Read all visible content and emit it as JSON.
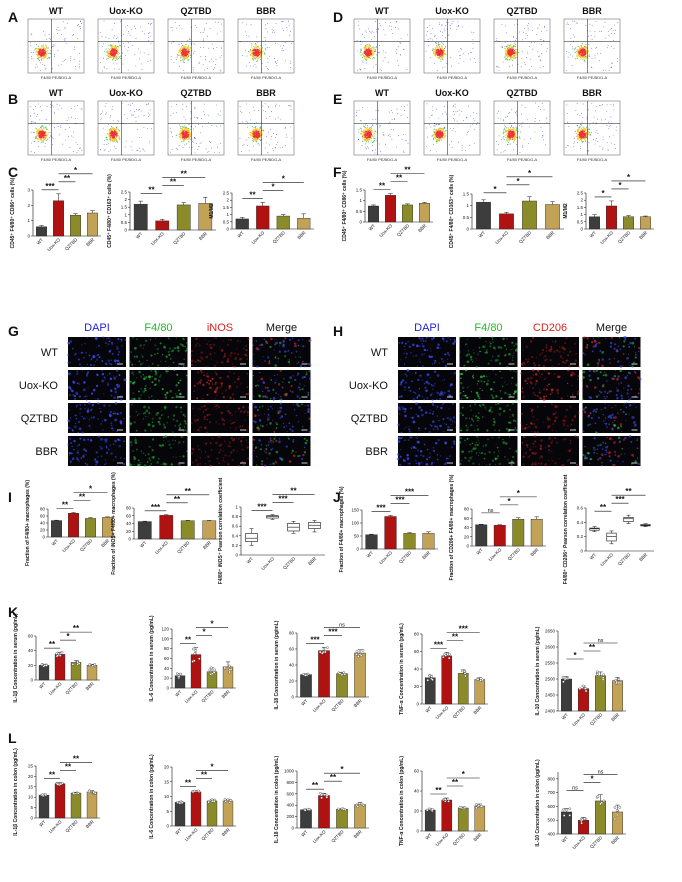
{
  "panels": {
    "A": {
      "letter": "A",
      "groups": [
        "WT",
        "Uox-KO",
        "QZTBD",
        "BBR"
      ]
    },
    "B": {
      "letter": "B",
      "groups": [
        "WT",
        "Uox-KO",
        "QZTBD",
        "BBR"
      ]
    },
    "D": {
      "letter": "D",
      "groups": [
        "WT",
        "Uox-KO",
        "QZTBD",
        "BBR"
      ]
    },
    "E": {
      "letter": "E",
      "groups": [
        "WT",
        "Uox-KO",
        "QZTBD",
        "BBR"
      ]
    },
    "C": {
      "letter": "C"
    },
    "F": {
      "letter": "F"
    },
    "G": {
      "letter": "G",
      "columns": [
        "DAPI",
        "F4/80",
        "iNOS",
        "Merge"
      ],
      "rows": [
        "WT",
        "Uox-KO",
        "QZTBD",
        "BBR"
      ]
    },
    "H": {
      "letter": "H",
      "columns": [
        "DAPI",
        "F4/80",
        "CD206",
        "Merge"
      ],
      "rows": [
        "WT",
        "Uox-KO",
        "QZTBD",
        "BBR"
      ]
    },
    "I": {
      "letter": "I"
    },
    "J": {
      "letter": "J"
    },
    "K": {
      "letter": "K"
    },
    "L": {
      "letter": "L"
    }
  },
  "flow_axis_labels": {
    "x": "F4/80 PE/BDG-A",
    "y": "CD86 APC-A"
  },
  "colors": {
    "WT": "#3d3d3d",
    "Uox-KO": "#b01212",
    "QZTBD": "#8b8b2a",
    "BBR": "#c2a257",
    "dapi": "#2323dd",
    "f480": "#22bb22",
    "red": "#dd2222"
  },
  "chart_data": [
    {
      "id": "C1",
      "type": "bar",
      "categories": [
        "WT",
        "Uox-KO",
        "QZTBD",
        "BBR"
      ],
      "values": [
        0.6,
        2.3,
        1.35,
        1.5
      ],
      "errors": [
        0.08,
        0.45,
        0.1,
        0.15
      ],
      "ylim": [
        0,
        3
      ],
      "yticks": [
        0,
        1,
        2,
        3
      ],
      "ylabel": "CD45⁺ F4/80⁺ CD86⁺ cells (%)",
      "sig": [
        {
          "from": 0,
          "to": 1,
          "label": "***"
        },
        {
          "from": 1,
          "to": 2,
          "label": "**"
        },
        {
          "from": 1,
          "to": 3,
          "label": "*"
        }
      ]
    },
    {
      "id": "C2",
      "type": "bar",
      "categories": [
        "WT",
        "Uox-KO",
        "QZTBD",
        "BBR"
      ],
      "values": [
        1.7,
        0.6,
        1.65,
        1.75
      ],
      "errors": [
        0.2,
        0.1,
        0.15,
        0.4
      ],
      "ylim": [
        0,
        2.5
      ],
      "yticks": [
        0,
        0.5,
        1.0,
        1.5,
        2.0,
        2.5
      ],
      "ylabel": "CD45⁺ F4/80⁺ CD163⁺ cells (%)",
      "sig": [
        {
          "from": 0,
          "to": 1,
          "label": "**"
        },
        {
          "from": 1,
          "to": 2,
          "label": "**"
        },
        {
          "from": 1,
          "to": 3,
          "label": "**"
        }
      ]
    },
    {
      "id": "C3",
      "type": "bar",
      "categories": [
        "WT",
        "Uox-KO",
        "QZTBD",
        "BBR"
      ],
      "values": [
        0.7,
        1.6,
        0.9,
        0.75
      ],
      "errors": [
        0.1,
        0.25,
        0.1,
        0.3
      ],
      "ylim": [
        0,
        2.5
      ],
      "yticks": [
        0,
        0.5,
        1.0,
        1.5,
        2.0,
        2.5
      ],
      "ylabel": "M1/M2",
      "sig": [
        {
          "from": 0,
          "to": 1,
          "label": "**"
        },
        {
          "from": 1,
          "to": 2,
          "label": "*"
        },
        {
          "from": 1,
          "to": 3,
          "label": "*"
        }
      ]
    },
    {
      "id": "F1",
      "type": "bar",
      "categories": [
        "WT",
        "Uox-KO",
        "QZTBD",
        "BBR"
      ],
      "values": [
        0.75,
        1.25,
        0.8,
        0.88
      ],
      "errors": [
        0.05,
        0.08,
        0.05,
        0.04
      ],
      "ylim": [
        0,
        1.5
      ],
      "yticks": [
        0,
        0.5,
        1.0,
        1.5
      ],
      "ylabel": "CD45⁺ F4/80⁺ CD86⁺ cells (%)",
      "sig": [
        {
          "from": 0,
          "to": 1,
          "label": "**"
        },
        {
          "from": 1,
          "to": 2,
          "label": "**"
        },
        {
          "from": 1,
          "to": 3,
          "label": "**"
        }
      ]
    },
    {
      "id": "F2",
      "type": "bar",
      "categories": [
        "WT",
        "Uox-KO",
        "QZTBD",
        "BBR"
      ],
      "values": [
        1.15,
        0.65,
        1.2,
        1.05
      ],
      "errors": [
        0.1,
        0.06,
        0.18,
        0.12
      ],
      "ylim": [
        0,
        1.5
      ],
      "yticks": [
        0,
        0.5,
        1.0,
        1.5
      ],
      "ylabel": "CD45⁺ F4/80⁺ CD163⁺ cells (%)",
      "sig": [
        {
          "from": 0,
          "to": 1,
          "label": "*"
        },
        {
          "from": 1,
          "to": 2,
          "label": "*"
        },
        {
          "from": 1,
          "to": 3,
          "label": "*"
        }
      ]
    },
    {
      "id": "F3",
      "type": "bar",
      "categories": [
        "WT",
        "Uox-KO",
        "QZTBD",
        "BBR"
      ],
      "values": [
        0.85,
        1.6,
        0.85,
        0.85
      ],
      "errors": [
        0.15,
        0.35,
        0.08,
        0.05
      ],
      "ylim": [
        0,
        2.5
      ],
      "yticks": [
        0,
        0.5,
        1.0,
        1.5,
        2.0,
        2.5
      ],
      "ylabel": "M1/M2",
      "sig": [
        {
          "from": 0,
          "to": 1,
          "label": "*"
        },
        {
          "from": 1,
          "to": 2,
          "label": "*"
        },
        {
          "from": 1,
          "to": 3,
          "label": "*"
        }
      ]
    },
    {
      "id": "I1",
      "type": "bar",
      "categories": [
        "WT",
        "Uox-KO",
        "QZTBD",
        "BBR"
      ],
      "values": [
        47,
        68,
        53,
        56
      ],
      "errors": [
        1,
        2,
        2,
        1.5
      ],
      "ylim": [
        0,
        80
      ],
      "yticks": [
        0,
        20,
        40,
        60,
        80
      ],
      "ylabel": "Fraction of F4/80+ macrophages (%)",
      "sig": [
        {
          "from": 0,
          "to": 1,
          "label": "**"
        },
        {
          "from": 1,
          "to": 2,
          "label": "**"
        },
        {
          "from": 1,
          "to": 3,
          "label": "*"
        }
      ]
    },
    {
      "id": "I2",
      "type": "bar",
      "categories": [
        "WT",
        "Uox-KO",
        "QZTBD",
        "BBR"
      ],
      "values": [
        45,
        61,
        47,
        47
      ],
      "errors": [
        1,
        1.5,
        1,
        0.8
      ],
      "ylim": [
        0,
        80
      ],
      "yticks": [
        0,
        20,
        40,
        60,
        80
      ],
      "ylabel": "Fraction of iNOS+ F4/80+ macrophages (%)",
      "sig": [
        {
          "from": 0,
          "to": 1,
          "label": "***"
        },
        {
          "from": 1,
          "to": 2,
          "label": "**"
        },
        {
          "from": 1,
          "to": 3,
          "label": "**"
        }
      ]
    },
    {
      "id": "I3",
      "type": "box",
      "categories": [
        "WT",
        "Uox-KO",
        "QZTBD",
        "BBR"
      ],
      "boxes": [
        [
          0.2,
          0.28,
          0.35,
          0.45,
          0.55
        ],
        [
          0.74,
          0.77,
          0.8,
          0.82,
          0.84
        ],
        [
          0.45,
          0.5,
          0.58,
          0.66,
          0.7
        ],
        [
          0.48,
          0.55,
          0.62,
          0.68,
          0.72
        ]
      ],
      "ylim": [
        0,
        1.0
      ],
      "yticks": [
        0,
        0.2,
        0.4,
        0.6,
        0.8,
        1.0
      ],
      "ylabel": "F4/80⁺ iNOS⁺ Pearson correlation coefficient",
      "sig": [
        {
          "from": 0,
          "to": 1,
          "label": "***"
        },
        {
          "from": 1,
          "to": 2,
          "label": "***"
        },
        {
          "from": 1,
          "to": 3,
          "label": "**"
        }
      ]
    },
    {
      "id": "J1",
      "type": "bar",
      "categories": [
        "WT",
        "Uox-KO",
        "QZTBD",
        "BBR"
      ],
      "values": [
        55,
        125,
        60,
        60
      ],
      "errors": [
        2,
        4,
        3,
        6
      ],
      "ylim": [
        0,
        150
      ],
      "yticks": [
        0,
        50,
        100,
        150
      ],
      "ylabel": "Fraction of F4/80+ macrophages (%)",
      "sig": [
        {
          "from": 0,
          "to": 1,
          "label": "***"
        },
        {
          "from": 1,
          "to": 2,
          "label": "***"
        },
        {
          "from": 1,
          "to": 3,
          "label": "***"
        }
      ]
    },
    {
      "id": "J2",
      "type": "bar",
      "categories": [
        "WT",
        "Uox-KO",
        "QZTBD",
        "BBR"
      ],
      "values": [
        46,
        45,
        58,
        58
      ],
      "errors": [
        1,
        1,
        3,
        5
      ],
      "ylim": [
        0,
        80
      ],
      "yticks": [
        0,
        20,
        40,
        60,
        80
      ],
      "ylabel": "Fraction of CD206+ F4/80+ macrophages (%)",
      "sig": [
        {
          "from": 0,
          "to": 1,
          "label": "ns"
        },
        {
          "from": 1,
          "to": 2,
          "label": "*"
        },
        {
          "from": 1,
          "to": 3,
          "label": "*"
        }
      ]
    },
    {
      "id": "J3",
      "type": "box",
      "categories": [
        "WT",
        "Uox-KO",
        "QZTBD",
        "BBR"
      ],
      "boxes": [
        [
          0.27,
          0.29,
          0.31,
          0.32,
          0.34
        ],
        [
          0.1,
          0.14,
          0.2,
          0.25,
          0.28
        ],
        [
          0.38,
          0.41,
          0.45,
          0.47,
          0.5
        ],
        [
          0.34,
          0.35,
          0.36,
          0.37,
          0.38
        ]
      ],
      "ylim": [
        0,
        0.6
      ],
      "yticks": [
        0,
        0.2,
        0.4,
        0.6
      ],
      "ylabel": "F4/80⁺ CD206⁺ Pearson correlation coefficient",
      "sig": [
        {
          "from": 0,
          "to": 1,
          "label": "**"
        },
        {
          "from": 1,
          "to": 2,
          "label": "***"
        },
        {
          "from": 1,
          "to": 3,
          "label": "**"
        }
      ]
    },
    {
      "id": "K1",
      "type": "bar",
      "dots": true,
      "categories": [
        "WT",
        "Uox-KO",
        "QZTBD",
        "BBR"
      ],
      "values": [
        20,
        35,
        24,
        20
      ],
      "errors": [
        1.5,
        3,
        2.5,
        1.5
      ],
      "ylim": [
        0,
        60
      ],
      "yticks": [
        0,
        20,
        40,
        60
      ],
      "ylabel": "IL-1β Concentration in serum (pg/mL)",
      "sig": [
        {
          "from": 0,
          "to": 1,
          "label": "**"
        },
        {
          "from": 1,
          "to": 2,
          "label": "*"
        },
        {
          "from": 1,
          "to": 3,
          "label": "**"
        }
      ]
    },
    {
      "id": "K2",
      "type": "bar",
      "dots": true,
      "categories": [
        "WT",
        "Uox-KO",
        "QZTBD",
        "BBR"
      ],
      "values": [
        25,
        68,
        33,
        43
      ],
      "errors": [
        4,
        14,
        8,
        10
      ],
      "ylim": [
        0,
        120
      ],
      "yticks": [
        0,
        20,
        40,
        60,
        80,
        100,
        120
      ],
      "ylabel": "IL-6 Concentration in serum (pg/mL)",
      "sig": [
        {
          "from": 0,
          "to": 1,
          "label": "**"
        },
        {
          "from": 1,
          "to": 2,
          "label": "*"
        },
        {
          "from": 1,
          "to": 3,
          "label": "*"
        }
      ]
    },
    {
      "id": "K3",
      "type": "bar",
      "dots": true,
      "categories": [
        "WT",
        "Uox-KO",
        "QZTBD",
        "BBR"
      ],
      "values": [
        28,
        58,
        29,
        55
      ],
      "errors": [
        1,
        4,
        2,
        4
      ],
      "ylim": [
        0,
        80
      ],
      "yticks": [
        0,
        20,
        40,
        60,
        80
      ],
      "ylabel": "IL-18 Concentration in serum (pg/mL)",
      "sig": [
        {
          "from": 0,
          "to": 1,
          "label": "***"
        },
        {
          "from": 1,
          "to": 2,
          "label": "***"
        },
        {
          "from": 1,
          "to": 3,
          "label": "ns"
        }
      ]
    },
    {
      "id": "K4",
      "type": "bar",
      "dots": true,
      "categories": [
        "WT",
        "Uox-KO",
        "QZTBD",
        "BBR"
      ],
      "values": [
        30,
        55,
        35,
        28
      ],
      "errors": [
        3,
        4,
        4,
        2
      ],
      "ylim": [
        0,
        80
      ],
      "yticks": [
        0,
        20,
        40,
        60,
        80
      ],
      "ylabel": "TNF-α Concentration in serum (pg/mL)",
      "sig": [
        {
          "from": 0,
          "to": 1,
          "label": "***"
        },
        {
          "from": 1,
          "to": 2,
          "label": "**"
        },
        {
          "from": 1,
          "to": 3,
          "label": "***"
        }
      ]
    },
    {
      "id": "K5",
      "type": "bar",
      "dots": true,
      "categories": [
        "WT",
        "Uox-KO",
        "QZTBD",
        "BBR"
      ],
      "values": [
        2500,
        2470,
        2510,
        2495
      ],
      "errors": [
        8,
        8,
        12,
        10
      ],
      "ylim": [
        2400,
        2650
      ],
      "yticks": [
        2400,
        2450,
        2500,
        2550,
        2600,
        2650
      ],
      "ylabel": "IL-10 Concentration in serum (pg/mL)",
      "sig": [
        {
          "from": 0,
          "to": 1,
          "label": "*"
        },
        {
          "from": 1,
          "to": 2,
          "label": "**"
        },
        {
          "from": 1,
          "to": 3,
          "label": "ns"
        }
      ]
    },
    {
      "id": "L1",
      "type": "bar",
      "dots": true,
      "categories": [
        "WT",
        "Uox-KO",
        "QZTBD",
        "BBR"
      ],
      "values": [
        11,
        16.5,
        12,
        12.5
      ],
      "errors": [
        0.5,
        0.5,
        0.4,
        0.6
      ],
      "ylim": [
        0,
        25
      ],
      "yticks": [
        0,
        5,
        10,
        15,
        20,
        25
      ],
      "ylabel": "IL-1β Concentration in colon (pg/mL)",
      "sig": [
        {
          "from": 0,
          "to": 1,
          "label": "**"
        },
        {
          "from": 1,
          "to": 2,
          "label": "**"
        },
        {
          "from": 1,
          "to": 3,
          "label": "**"
        }
      ]
    },
    {
      "id": "L2",
      "type": "bar",
      "dots": true,
      "categories": [
        "WT",
        "Uox-KO",
        "QZTBD",
        "BBR"
      ],
      "values": [
        8,
        11.5,
        8.5,
        8.5
      ],
      "errors": [
        0.3,
        0.5,
        0.5,
        0.5
      ],
      "ylim": [
        0,
        20
      ],
      "yticks": [
        0,
        5,
        10,
        15,
        20
      ],
      "ylabel": "IL-6 Concentration in colon (pg/mL)",
      "sig": [
        {
          "from": 0,
          "to": 1,
          "label": "**"
        },
        {
          "from": 1,
          "to": 2,
          "label": "**"
        },
        {
          "from": 1,
          "to": 3,
          "label": "*"
        }
      ]
    },
    {
      "id": "L3",
      "type": "bar",
      "dots": true,
      "categories": [
        "WT",
        "Uox-KO",
        "QZTBD",
        "BBR"
      ],
      "values": [
        320,
        570,
        330,
        410
      ],
      "errors": [
        10,
        40,
        10,
        40
      ],
      "ylim": [
        0,
        1000
      ],
      "yticks": [
        0,
        200,
        400,
        600,
        800,
        1000
      ],
      "ylabel": "IL-18 Concentration in colon (pg/mL)",
      "sig": [
        {
          "from": 0,
          "to": 1,
          "label": "**"
        },
        {
          "from": 1,
          "to": 2,
          "label": "**"
        },
        {
          "from": 1,
          "to": 3,
          "label": "*"
        }
      ]
    },
    {
      "id": "L4",
      "type": "bar",
      "dots": true,
      "categories": [
        "WT",
        "Uox-KO",
        "QZTBD",
        "BBR"
      ],
      "values": [
        21,
        31,
        23,
        25
      ],
      "errors": [
        1,
        2,
        1,
        2
      ],
      "ylim": [
        0,
        60
      ],
      "yticks": [
        0,
        20,
        40,
        60
      ],
      "ylabel": "TNF-α Concentration in colon (pg/mL)",
      "sig": [
        {
          "from": 0,
          "to": 1,
          "label": "**"
        },
        {
          "from": 1,
          "to": 2,
          "label": "**"
        },
        {
          "from": 1,
          "to": 3,
          "label": "*"
        }
      ]
    },
    {
      "id": "L5",
      "type": "bar",
      "dots": true,
      "categories": [
        "WT",
        "Uox-KO",
        "QZTBD",
        "BBR"
      ],
      "values": [
        560,
        500,
        640,
        560
      ],
      "errors": [
        25,
        20,
        45,
        50
      ],
      "ylim": [
        400,
        850
      ],
      "yticks": [
        400,
        500,
        600,
        700,
        800
      ],
      "ylabel": "IL-10 Concentration in colon (pg/mL)",
      "sig": [
        {
          "from": 0,
          "to": 1,
          "label": "ns"
        },
        {
          "from": 1,
          "to": 2,
          "label": "*"
        },
        {
          "from": 1,
          "to": 3,
          "label": "ns"
        }
      ]
    }
  ]
}
